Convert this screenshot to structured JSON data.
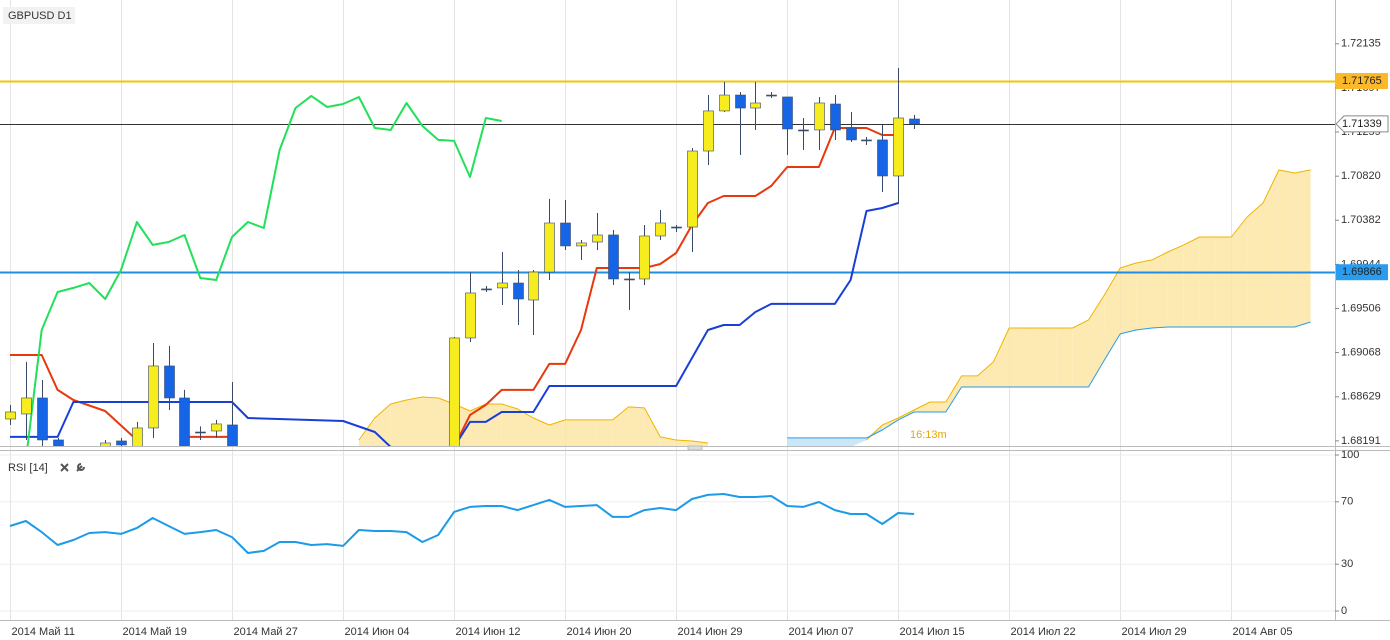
{
  "chart_data": [
    {
      "type": "candlestick",
      "title": "GBPUSD D1",
      "annotation": "16:13m",
      "xlim": [
        -0.63,
        83.54
      ],
      "xticks": [
        {
          "value": 0,
          "label": "2014 Май 11"
        },
        {
          "value": 7,
          "label": "2014 Май 19"
        },
        {
          "value": 14,
          "label": "2014 Май 27"
        },
        {
          "value": 21,
          "label": "2014 Июн 04"
        },
        {
          "value": 28,
          "label": "2014 Июн 12"
        },
        {
          "value": 35,
          "label": "2014 Июн 20"
        },
        {
          "value": 42,
          "label": "2014 Июн 29"
        },
        {
          "value": 49,
          "label": "2014 Июл 07"
        },
        {
          "value": 56,
          "label": "2014 Июл 15"
        },
        {
          "value": 63,
          "label": "2014 Июл 22"
        },
        {
          "value": 70,
          "label": "2014 Июл 29"
        },
        {
          "value": 77,
          "label": "2014 Авг 05"
        }
      ],
      "ylim": [
        1.6813,
        1.7257
      ],
      "yticks": [
        1.72135,
        1.71697,
        1.71259,
        {
          "value": 1.7082,
          "label": "1.70820"
        },
        1.70382,
        1.69944,
        1.69506,
        1.69068,
        1.68629,
        1.68191
      ],
      "grid": true,
      "up_color": "#f7ec1d",
      "down_color": "#1565e6",
      "doji_color": "#3a4a6a",
      "x": [
        0,
        1,
        2,
        3,
        6,
        7,
        8,
        9,
        10,
        11,
        12,
        13,
        14,
        28,
        29,
        30,
        31,
        32,
        33,
        34,
        35,
        36,
        37,
        38,
        39,
        40,
        41,
        42,
        43,
        44,
        45,
        46,
        47,
        48,
        49,
        50,
        51,
        52,
        53,
        54,
        55,
        56,
        57
      ],
      "open": [
        1.68408,
        1.68458,
        1.68617,
        1.682,
        1.6813,
        1.6819,
        1.68101,
        1.68319,
        1.68935,
        1.68617,
        1.68279,
        1.68289,
        1.68349,
        1.68,
        1.69213,
        1.697,
        1.6971,
        1.69759,
        1.6959,
        1.69868,
        1.70355,
        1.70127,
        1.70166,
        1.70236,
        1.69799,
        1.69799,
        1.70226,
        1.70315,
        1.70315,
        1.7107,
        1.71468,
        1.71626,
        1.71497,
        1.71626,
        1.71607,
        1.71279,
        1.71279,
        1.71537,
        1.71299,
        1.7118,
        1.7118,
        1.70822,
        1.71388
      ],
      "high": [
        1.68548,
        1.68975,
        1.68796,
        1.6822,
        1.682,
        1.6822,
        1.68379,
        1.69163,
        1.69134,
        1.68697,
        1.68335,
        1.68399,
        1.68776,
        1.69223,
        1.69868,
        1.69729,
        1.70067,
        1.69888,
        1.69888,
        1.70594,
        1.70584,
        1.70186,
        1.70454,
        1.70286,
        1.69868,
        1.70335,
        1.70484,
        1.70335,
        1.711,
        1.71626,
        1.71756,
        1.71656,
        1.71756,
        1.71656,
        1.71607,
        1.71398,
        1.71607,
        1.71626,
        1.71458,
        1.71209,
        1.71328,
        1.71895,
        1.71428
      ],
      "low": [
        1.68349,
        1.682,
        1.6813,
        1.68,
        1.68101,
        1.6812,
        1.68051,
        1.6822,
        1.68498,
        1.68051,
        1.682,
        1.6822,
        1.68051,
        1.6795,
        1.69173,
        1.6967,
        1.69541,
        1.69342,
        1.69243,
        1.69789,
        1.70087,
        1.69988,
        1.70087,
        1.69739,
        1.69491,
        1.69739,
        1.70186,
        1.70266,
        1.70067,
        1.70931,
        1.71458,
        1.71031,
        1.71279,
        1.71597,
        1.71031,
        1.7108,
        1.7108,
        1.7118,
        1.7116,
        1.7113,
        1.70663,
        1.70544,
        1.71289
      ],
      "close": [
        1.68478,
        1.68617,
        1.682,
        1.68051,
        1.6817,
        1.6815,
        1.68319,
        1.68935,
        1.68617,
        1.68101,
        1.68279,
        1.68359,
        1.68101,
        1.69213,
        1.6966,
        1.697,
        1.69759,
        1.696,
        1.69868,
        1.70355,
        1.70127,
        1.70157,
        1.70236,
        1.69799,
        1.69799,
        1.70226,
        1.70355,
        1.70315,
        1.7107,
        1.71468,
        1.71626,
        1.71497,
        1.71547,
        1.71626,
        1.71289,
        1.71279,
        1.71547,
        1.71279,
        1.7118,
        1.7118,
        1.70822,
        1.71398,
        1.71339
      ],
      "series": [
        {
          "color": "#e8380d",
          "x": [
            0,
            2,
            3,
            4,
            6,
            8,
            9,
            11,
            14,
            15,
            28,
            29,
            30,
            31,
            33,
            34,
            35,
            36,
            37,
            40,
            41,
            42,
            43,
            44,
            45,
            47,
            48,
            49,
            51,
            52,
            54,
            55,
            56
          ],
          "values": [
            1.69044,
            1.69044,
            1.68697,
            1.68597,
            1.68488,
            1.682,
            null,
            1.6823,
            1.6823,
            null,
            1.6813,
            1.68448,
            1.68548,
            1.68697,
            1.68697,
            1.68955,
            1.68955,
            1.69292,
            1.69908,
            1.69908,
            1.69948,
            1.70057,
            1.70335,
            1.70554,
            1.70623,
            1.70623,
            1.70723,
            1.70911,
            1.70911,
            1.71299,
            1.71299,
            1.71229,
            1.71229
          ]
        },
        {
          "color": "#1a3fd6",
          "x": [
            0,
            3,
            4,
            14,
            15,
            21,
            23,
            24,
            25,
            28,
            29,
            30,
            31,
            33,
            34,
            42,
            44,
            45,
            46,
            47,
            48,
            52,
            53,
            54,
            55,
            56
          ],
          "values": [
            1.6823,
            1.6823,
            1.68577,
            1.68577,
            1.68418,
            1.68388,
            1.68279,
            1.6813,
            null,
            1.6813,
            1.68379,
            1.68379,
            1.68478,
            1.68478,
            1.68736,
            1.68736,
            1.69292,
            1.69342,
            1.69342,
            1.69471,
            1.69551,
            1.69551,
            1.69789,
            1.70474,
            1.70504,
            1.70554
          ]
        },
        {
          "color": "#22e05a",
          "x": [
            1,
            2,
            3,
            4,
            5,
            6,
            7,
            8,
            9,
            10,
            11,
            12,
            13,
            14,
            15,
            16,
            17,
            18,
            19,
            20,
            21,
            22,
            23,
            24,
            25,
            26,
            27,
            28,
            29,
            30,
            31
          ],
          "values": [
            1.68001,
            1.69292,
            1.6967,
            1.6971,
            1.69759,
            1.696,
            1.69888,
            1.70365,
            1.70137,
            1.70166,
            1.70236,
            1.69809,
            1.69789,
            1.70216,
            1.70365,
            1.70305,
            1.7108,
            1.71497,
            1.71617,
            1.71507,
            1.71537,
            1.71607,
            1.71299,
            1.71279,
            1.71547,
            1.71319,
            1.7118,
            1.7117,
            1.70812,
            1.71398,
            1.71368
          ]
        }
      ],
      "cloud": {
        "x": [
          22,
          23,
          24,
          25,
          26,
          27,
          28,
          29,
          30,
          31,
          32,
          33,
          34,
          35,
          36,
          37,
          38,
          39,
          40,
          41,
          42,
          43,
          44,
          45,
          46,
          47,
          48,
          49,
          50,
          51,
          52,
          53,
          54,
          55,
          56,
          57,
          58,
          59,
          60,
          61,
          62,
          63,
          64,
          65,
          66,
          67,
          68,
          69,
          70,
          71,
          72,
          73,
          74,
          75,
          76,
          77,
          78,
          79,
          80,
          81,
          82
        ],
        "span_a": {
          "color": "#f0b400",
          "values": [
            1.682,
            1.68418,
            1.68557,
            1.68597,
            1.68627,
            1.68617,
            1.68557,
            1.68488,
            1.68557,
            1.68557,
            1.68508,
            1.68418,
            1.68349,
            1.68399,
            1.68399,
            1.68399,
            1.68399,
            1.68528,
            1.68518,
            1.6823,
            1.682,
            1.6819,
            1.6817,
            null,
            null,
            null,
            null,
            null,
            null,
            null,
            null,
            null,
            1.682,
            1.68349,
            1.68418,
            1.68498,
            1.68577,
            1.68577,
            1.68836,
            1.68836,
            1.68975,
            1.69312,
            1.69312,
            1.69312,
            1.69312,
            1.69312,
            1.69392,
            1.6964,
            1.69908,
            1.69958,
            1.69988,
            1.70067,
            1.70137,
            1.70216,
            1.70216,
            1.70216,
            1.70415,
            1.70554,
            1.70882,
            1.70852,
            1.70882
          ]
        },
        "span_b": {
          "color": "#2b9be6",
          "values": [
            null,
            null,
            null,
            null,
            null,
            null,
            null,
            null,
            null,
            null,
            null,
            null,
            null,
            null,
            null,
            null,
            null,
            null,
            null,
            null,
            null,
            null,
            null,
            null,
            null,
            null,
            null,
            1.6822,
            1.6822,
            1.6822,
            1.6822,
            1.6822,
            1.6822,
            1.68299,
            1.68399,
            1.68478,
            1.68478,
            1.68478,
            1.68726,
            1.68726,
            1.68726,
            1.68726,
            1.68726,
            1.68726,
            1.68726,
            1.68726,
            1.68726,
            1.68994,
            1.69253,
            1.69292,
            1.69312,
            1.69322,
            1.69322,
            1.69322,
            1.69322,
            1.69322,
            1.69322,
            1.69322,
            1.69322,
            1.69322,
            1.69372
          ]
        },
        "fill_up": "#fde6a6",
        "fill_down": "#bfe3f8"
      },
      "hlines": [
        {
          "value": 1.71765,
          "color": "#f3c400",
          "label_bg": "#fbb829"
        },
        {
          "value": 1.71339,
          "color": "#333333",
          "label_bg": "#ffffff"
        },
        {
          "value": 1.69866,
          "color": "#1e8fe0",
          "label_bg": "#2a9cf0"
        }
      ]
    },
    {
      "type": "line",
      "title": "RSI [14]",
      "color": "#1e9be8",
      "xlim": [
        -0.63,
        83.54
      ],
      "ylim": [
        0,
        100
      ],
      "yticks": [
        0,
        30,
        70,
        100
      ],
      "x": [
        0,
        1,
        2,
        3,
        4,
        5,
        6,
        7,
        8,
        9,
        10,
        11,
        12,
        13,
        14,
        15,
        16,
        17,
        18,
        19,
        20,
        21,
        22,
        23,
        24,
        25,
        26,
        27,
        28,
        29,
        30,
        31,
        32,
        33,
        34,
        35,
        36,
        37,
        38,
        39,
        40,
        41,
        42,
        43,
        44,
        45,
        46,
        47,
        48,
        49,
        50,
        51,
        52,
        53,
        54,
        55,
        56,
        57
      ],
      "values": [
        54.5,
        57.7,
        50.6,
        42.3,
        45.5,
        50.0,
        50.6,
        49.4,
        53.2,
        59.6,
        54.5,
        49.4,
        50.6,
        51.9,
        47.4,
        37.2,
        38.5,
        44.2,
        44.2,
        42.3,
        42.9,
        41.7,
        51.9,
        51.3,
        51.3,
        50.6,
        44.2,
        48.7,
        63.5,
        66.7,
        67.3,
        67.3,
        64.7,
        67.9,
        71.2,
        66.7,
        67.3,
        67.9,
        60.3,
        60.3,
        64.7,
        66.0,
        64.7,
        71.8,
        74.4,
        75.0,
        73.1,
        73.1,
        73.7,
        67.3,
        66.7,
        69.9,
        64.7,
        62.2,
        62.2,
        55.8,
        62.8,
        62.2
      ]
    }
  ]
}
